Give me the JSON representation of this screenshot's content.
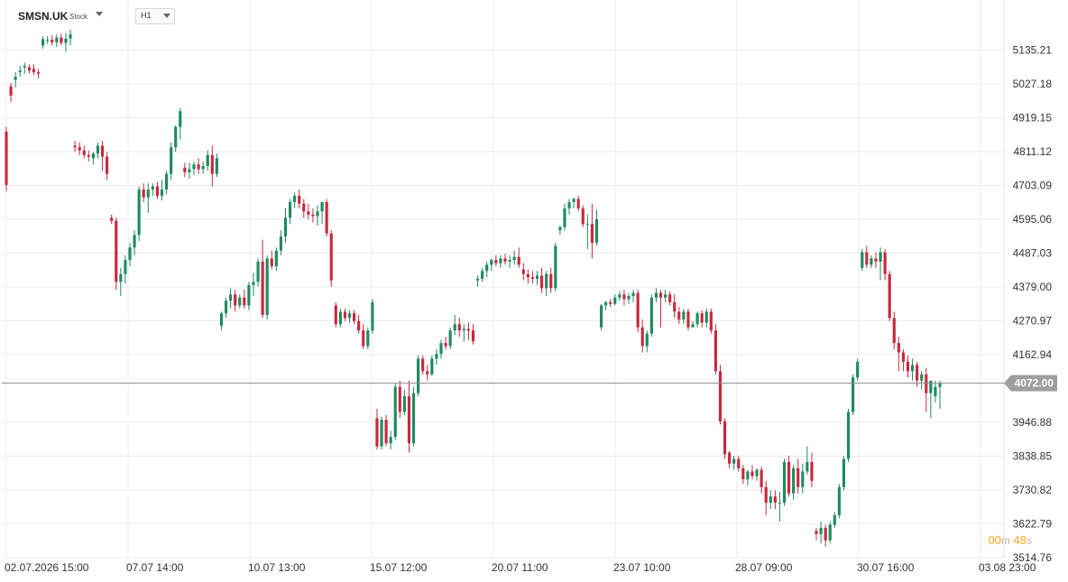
{
  "header": {
    "symbol": "SMSN.UK",
    "symbol_type": "Stock",
    "timeframe": "H1"
  },
  "timer": {
    "minutes": "00",
    "minutes_unit": "m",
    "seconds": "48",
    "seconds_unit": "s"
  },
  "colors": {
    "up": "#1e8a5f",
    "down": "#c8283e",
    "grid": "#ececec",
    "price_line": "#8a8a8a",
    "price_tag": "#9e9e9e"
  },
  "chart_data": {
    "type": "candlestick",
    "title": "",
    "xlabel": "",
    "ylabel": "",
    "ylim": [
      3500,
      5180
    ],
    "y_ticks": [
      "5135.21",
      "5027.18",
      "4919.15",
      "4811.12",
      "4703.09",
      "4595.06",
      "4487.03",
      "4379.00",
      "4270.97",
      "4162.94",
      "3946.88",
      "3838.85",
      "3730.82",
      "3622.79",
      "3514.76"
    ],
    "x_tick_labels": [
      "02.07.2026 15:00",
      "07.07 14:00",
      "10.07 13:00",
      "15.07 12:00",
      "20.07 11:00",
      "23.07 10:00",
      "28.07 09:00",
      "30.07 16:00",
      "03.08 23:00"
    ],
    "current_price": "4072.00",
    "grid": true,
    "candles": [
      [
        4875,
        4890,
        4685,
        4705
      ],
      [
        5020,
        5030,
        4970,
        4990
      ],
      [
        5040,
        5065,
        5015,
        5050
      ],
      [
        5065,
        5085,
        5050,
        5070
      ],
      [
        5080,
        5095,
        5060,
        5085
      ],
      [
        5080,
        5090,
        5060,
        5070
      ],
      [
        5075,
        5090,
        5055,
        5065
      ],
      [
        5065,
        5075,
        5045,
        5060
      ],
      [
        5150,
        5180,
        5140,
        5170
      ],
      [
        5165,
        5180,
        5155,
        5168
      ],
      [
        5168,
        5182,
        5150,
        5160
      ],
      [
        5160,
        5185,
        5145,
        5175
      ],
      [
        5175,
        5188,
        5150,
        5158
      ],
      [
        5158,
        5190,
        5130,
        5172
      ],
      [
        5172,
        5200,
        5150,
        5185
      ],
      [
        4830,
        4845,
        4810,
        4825
      ],
      [
        4825,
        4840,
        4800,
        4815
      ],
      [
        4815,
        4830,
        4790,
        4800
      ],
      [
        4800,
        4815,
        4780,
        4795
      ],
      [
        4790,
        4810,
        4770,
        4805
      ],
      [
        4805,
        4840,
        4790,
        4830
      ],
      [
        4830,
        4845,
        4750,
        4795
      ],
      [
        4795,
        4810,
        4720,
        4740
      ],
      [
        4600,
        4610,
        4580,
        4590
      ],
      [
        4590,
        4600,
        4370,
        4395
      ],
      [
        4395,
        4440,
        4350,
        4420
      ],
      [
        4420,
        4480,
        4390,
        4465
      ],
      [
        4465,
        4520,
        4445,
        4505
      ],
      [
        4505,
        4560,
        4480,
        4545
      ],
      [
        4545,
        4700,
        4525,
        4690
      ],
      [
        4690,
        4710,
        4650,
        4665
      ],
      [
        4665,
        4710,
        4615,
        4690
      ],
      [
        4690,
        4710,
        4670,
        4700
      ],
      [
        4700,
        4715,
        4660,
        4670
      ],
      [
        4670,
        4720,
        4655,
        4690
      ],
      [
        4690,
        4750,
        4675,
        4740
      ],
      [
        4740,
        4840,
        4720,
        4825
      ],
      [
        4825,
        4895,
        4810,
        4890
      ],
      [
        4890,
        4950,
        4850,
        4940
      ],
      [
        4760,
        4775,
        4730,
        4745
      ],
      [
        4745,
        4775,
        4725,
        4755
      ],
      [
        4755,
        4780,
        4735,
        4770
      ],
      [
        4770,
        4790,
        4740,
        4755
      ],
      [
        4755,
        4780,
        4740,
        4765
      ],
      [
        4765,
        4815,
        4750,
        4800
      ],
      [
        4800,
        4830,
        4700,
        4740
      ],
      [
        4740,
        4805,
        4730,
        4790
      ],
      [
        4255,
        4300,
        4240,
        4295
      ],
      [
        4295,
        4345,
        4280,
        4335
      ],
      [
        4335,
        4375,
        4310,
        4355
      ],
      [
        4355,
        4370,
        4300,
        4320
      ],
      [
        4320,
        4355,
        4310,
        4345
      ],
      [
        4345,
        4370,
        4310,
        4320
      ],
      [
        4320,
        4395,
        4305,
        4385
      ],
      [
        4385,
        4425,
        4350,
        4395
      ],
      [
        4395,
        4470,
        4380,
        4460
      ],
      [
        4460,
        4530,
        4280,
        4290
      ],
      [
        4290,
        4480,
        4275,
        4470
      ],
      [
        4470,
        4495,
        4435,
        4445
      ],
      [
        4445,
        4505,
        4430,
        4495
      ],
      [
        4495,
        4560,
        4480,
        4540
      ],
      [
        4540,
        4630,
        4520,
        4600
      ],
      [
        4600,
        4660,
        4580,
        4650
      ],
      [
        4650,
        4680,
        4630,
        4670
      ],
      [
        4670,
        4690,
        4630,
        4645
      ],
      [
        4645,
        4660,
        4600,
        4620
      ],
      [
        4620,
        4645,
        4595,
        4610
      ],
      [
        4610,
        4630,
        4585,
        4605
      ],
      [
        4605,
        4640,
        4575,
        4620
      ],
      [
        4620,
        4650,
        4580,
        4650
      ],
      [
        4650,
        4660,
        4540,
        4550
      ],
      [
        4550,
        4560,
        4380,
        4400
      ],
      [
        4320,
        4330,
        4250,
        4260
      ],
      [
        4260,
        4310,
        4250,
        4300
      ],
      [
        4300,
        4310,
        4270,
        4280
      ],
      [
        4280,
        4305,
        4265,
        4295
      ],
      [
        4295,
        4305,
        4260,
        4270
      ],
      [
        4270,
        4290,
        4230,
        4240
      ],
      [
        4240,
        4260,
        4180,
        4190
      ],
      [
        4190,
        4250,
        4180,
        4240
      ],
      [
        4240,
        4340,
        4230,
        4330
      ],
      [
        3960,
        3990,
        3860,
        3870
      ],
      [
        3870,
        3965,
        3860,
        3955
      ],
      [
        3955,
        3970,
        3870,
        3880
      ],
      [
        3880,
        3920,
        3860,
        3900
      ],
      [
        3900,
        4070,
        3890,
        4060
      ],
      [
        4060,
        4080,
        3960,
        3980
      ],
      [
        3980,
        4050,
        3970,
        4030
      ],
      [
        4030,
        4080,
        3850,
        3880
      ],
      [
        3880,
        4060,
        3870,
        4040
      ],
      [
        4040,
        4160,
        4030,
        4150
      ],
      [
        4150,
        4160,
        4100,
        4110
      ],
      [
        4110,
        4130,
        4080,
        4100
      ],
      [
        4100,
        4160,
        4095,
        4150
      ],
      [
        4150,
        4180,
        4130,
        4165
      ],
      [
        4165,
        4210,
        4150,
        4200
      ],
      [
        4200,
        4220,
        4180,
        4190
      ],
      [
        4190,
        4250,
        4180,
        4240
      ],
      [
        4240,
        4290,
        4225,
        4260
      ],
      [
        4260,
        4280,
        4220,
        4240
      ],
      [
        4240,
        4260,
        4205,
        4245
      ],
      [
        4245,
        4265,
        4210,
        4240
      ],
      [
        4240,
        4260,
        4195,
        4205
      ],
      [
        4400,
        4415,
        4380,
        4405
      ],
      [
        4405,
        4440,
        4395,
        4430
      ],
      [
        4430,
        4460,
        4410,
        4450
      ],
      [
        4450,
        4470,
        4430,
        4465
      ],
      [
        4465,
        4480,
        4445,
        4455
      ],
      [
        4455,
        4480,
        4440,
        4470
      ],
      [
        4470,
        4485,
        4450,
        4460
      ],
      [
        4460,
        4480,
        4440,
        4465
      ],
      [
        4465,
        4495,
        4450,
        4475
      ],
      [
        4475,
        4505,
        4440,
        4450
      ],
      [
        4435,
        4455,
        4400,
        4420
      ],
      [
        4420,
        4435,
        4390,
        4410
      ],
      [
        4410,
        4430,
        4390,
        4405
      ],
      [
        4405,
        4430,
        4385,
        4415
      ],
      [
        4415,
        4440,
        4360,
        4375
      ],
      [
        4375,
        4430,
        4350,
        4420
      ],
      [
        4420,
        4440,
        4360,
        4375
      ],
      [
        4375,
        4520,
        4365,
        4510
      ],
      [
        4560,
        4575,
        4545,
        4570
      ],
      [
        4570,
        4645,
        4560,
        4630
      ],
      [
        4630,
        4660,
        4610,
        4650
      ],
      [
        4650,
        4665,
        4630,
        4660
      ],
      [
        4660,
        4670,
        4620,
        4630
      ],
      [
        4630,
        4640,
        4570,
        4580
      ],
      [
        4580,
        4610,
        4500,
        4580
      ],
      [
        4580,
        4645,
        4470,
        4520
      ],
      [
        4520,
        4625,
        4510,
        4595
      ],
      [
        4250,
        4325,
        4240,
        4320
      ],
      [
        4320,
        4335,
        4305,
        4330
      ],
      [
        4330,
        4340,
        4315,
        4325
      ],
      [
        4325,
        4355,
        4320,
        4345
      ],
      [
        4345,
        4365,
        4335,
        4355
      ],
      [
        4355,
        4370,
        4320,
        4340
      ],
      [
        4340,
        4360,
        4325,
        4350
      ],
      [
        4350,
        4370,
        4330,
        4360
      ],
      [
        4360,
        4370,
        4235,
        4250
      ],
      [
        4250,
        4275,
        4170,
        4190
      ],
      [
        4190,
        4240,
        4170,
        4230
      ],
      [
        4230,
        4355,
        4220,
        4345
      ],
      [
        4345,
        4375,
        4330,
        4360
      ],
      [
        4360,
        4370,
        4250,
        4345
      ],
      [
        4345,
        4370,
        4330,
        4355
      ],
      [
        4355,
        4365,
        4320,
        4330
      ],
      [
        4330,
        4355,
        4280,
        4300
      ],
      [
        4300,
        4315,
        4260,
        4275
      ],
      [
        4275,
        4310,
        4260,
        4300
      ],
      [
        4300,
        4310,
        4240,
        4250
      ],
      [
        4250,
        4270,
        4250,
        4260
      ],
      [
        4260,
        4300,
        4250,
        4295
      ],
      [
        4295,
        4305,
        4250,
        4265
      ],
      [
        4265,
        4310,
        4250,
        4300
      ],
      [
        4300,
        4310,
        4230,
        4240
      ],
      [
        4240,
        4260,
        4100,
        4110
      ],
      [
        4110,
        4130,
        3940,
        3950
      ],
      [
        3950,
        3960,
        3830,
        3845
      ],
      [
        3850,
        3855,
        3800,
        3815
      ],
      [
        3815,
        3840,
        3795,
        3830
      ],
      [
        3830,
        3840,
        3790,
        3800
      ],
      [
        3800,
        3810,
        3750,
        3765
      ],
      [
        3765,
        3795,
        3745,
        3790
      ],
      [
        3790,
        3810,
        3765,
        3775
      ],
      [
        3775,
        3800,
        3760,
        3795
      ],
      [
        3795,
        3805,
        3720,
        3740
      ],
      [
        3740,
        3760,
        3650,
        3690
      ],
      [
        3690,
        3730,
        3670,
        3710
      ],
      [
        3710,
        3730,
        3670,
        3690
      ],
      [
        3690,
        3725,
        3630,
        3690
      ],
      [
        3690,
        3830,
        3680,
        3820
      ],
      [
        3820,
        3840,
        3710,
        3720
      ],
      [
        3720,
        3810,
        3700,
        3800
      ],
      [
        3800,
        3830,
        3720,
        3740
      ],
      [
        3740,
        3815,
        3720,
        3790
      ],
      [
        3790,
        3870,
        3780,
        3820
      ],
      [
        3820,
        3850,
        3740,
        3760
      ],
      [
        3600,
        3610,
        3570,
        3590
      ],
      [
        3590,
        3630,
        3560,
        3610
      ],
      [
        3610,
        3620,
        3550,
        3570
      ],
      [
        3570,
        3630,
        3560,
        3620
      ],
      [
        3620,
        3660,
        3610,
        3650
      ],
      [
        3650,
        3750,
        3640,
        3740
      ],
      [
        3740,
        3840,
        3730,
        3830
      ],
      [
        3830,
        3990,
        3820,
        3980
      ],
      [
        3980,
        4100,
        3970,
        4090
      ],
      [
        4090,
        4150,
        4080,
        4140
      ],
      [
        4440,
        4500,
        4430,
        4490
      ],
      [
        4490,
        4510,
        4440,
        4450
      ],
      [
        4450,
        4480,
        4440,
        4470
      ],
      [
        4470,
        4490,
        4440,
        4460
      ],
      [
        4460,
        4505,
        4400,
        4490
      ],
      [
        4490,
        4500,
        4400,
        4420
      ],
      [
        4420,
        4430,
        4270,
        4280
      ],
      [
        4280,
        4300,
        4180,
        4200
      ],
      [
        4200,
        4220,
        4110,
        4170
      ],
      [
        4170,
        4180,
        4110,
        4140
      ],
      [
        4140,
        4160,
        4090,
        4110
      ],
      [
        4110,
        4150,
        4080,
        4130
      ],
      [
        4130,
        4140,
        4060,
        4080
      ],
      [
        4080,
        4110,
        4050,
        4100
      ],
      [
        4100,
        4120,
        3980,
        4040
      ],
      [
        4040,
        4080,
        3960,
        4080
      ],
      [
        4030,
        4080,
        4010,
        4060
      ],
      [
        4060,
        4080,
        3990,
        4072
      ]
    ]
  }
}
